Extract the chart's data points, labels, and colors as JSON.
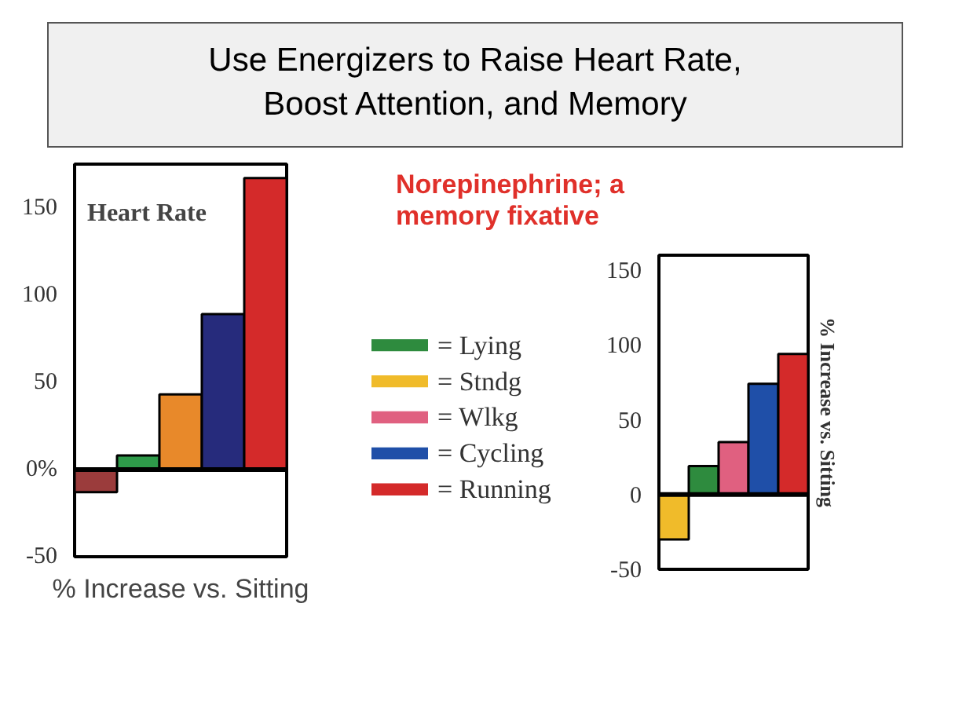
{
  "chart_data": [
    {
      "type": "bar",
      "title": "Use Energizers to Raise Heart Rate, Boost Attention, and Memory",
      "subtitle": "Heart Rate",
      "xlabel": "% Increase vs. Sitting",
      "categories": [
        null,
        null,
        null,
        null,
        null
      ],
      "values": [
        -13,
        8,
        43,
        89,
        167
      ],
      "colors": [
        "#9b3c3c",
        "#2e9a4a",
        "#e8892a",
        "#262b7c",
        "#d42a2a"
      ],
      "ylim": [
        -50,
        175
      ],
      "yticks": [
        -50,
        {
          "value": 0,
          "label": "0%"
        },
        50,
        100,
        150
      ],
      "tick_labels": "y"
    },
    {
      "type": "bar",
      "title": "Norepinephrine; a memory fixative",
      "ylabel": "% Increase vs. Sitting",
      "legend": "left",
      "categories": [
        null,
        null,
        null,
        null,
        null
      ],
      "series": [
        {
          "name": "= Lying",
          "color": "#2e8b3e",
          "values": [
            null,
            19,
            null,
            null,
            null
          ]
        },
        {
          "name": "= Stndg",
          "color": "#f0bb2a",
          "values": [
            -30,
            null,
            null,
            null,
            null
          ]
        },
        {
          "name": "= Wlkg",
          "color": "#e06080",
          "values": [
            null,
            null,
            35,
            null,
            null
          ]
        },
        {
          "name": "= Cycling",
          "color": "#1f4fa8",
          "values": [
            null,
            null,
            null,
            74,
            null
          ]
        },
        {
          "name": "= Running",
          "color": "#d42a2a",
          "values": [
            null,
            null,
            null,
            null,
            94
          ]
        }
      ],
      "ylim": [
        -50,
        160
      ],
      "yticks": [
        -50,
        0,
        50,
        100,
        150
      ],
      "tick_labels": "y"
    }
  ]
}
